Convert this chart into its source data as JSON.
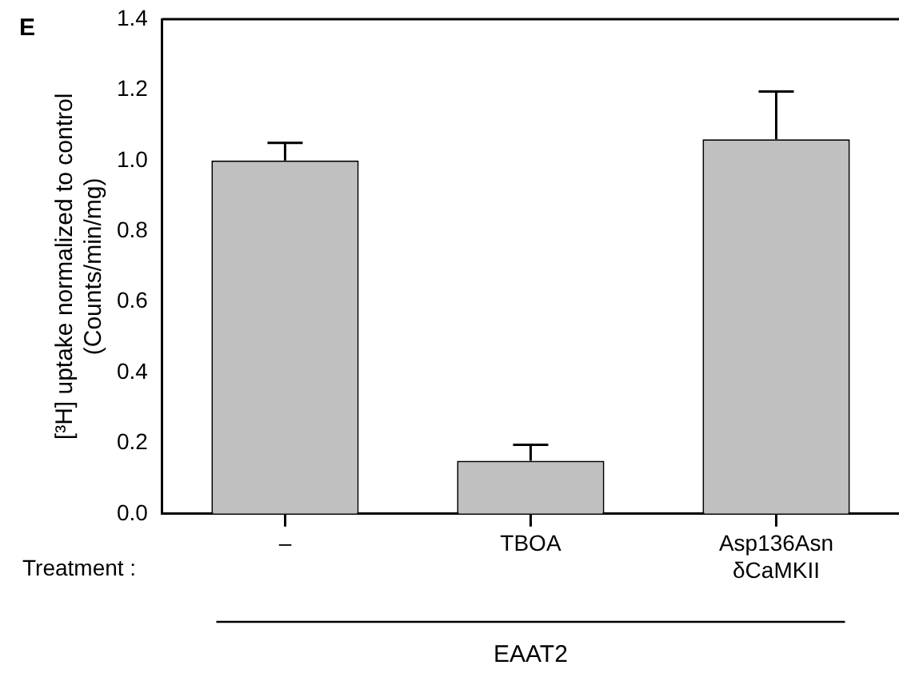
{
  "chart_data": {
    "type": "bar",
    "ylabel": "[³H] uptake normalized to control\n(Counts/min/mg)",
    "categories": [
      "–",
      "TBOA",
      "Asp136Asn\nδCaMKII"
    ],
    "values": [
      1.0,
      0.15,
      1.06
    ],
    "errors": [
      0.05,
      0.045,
      0.135
    ],
    "color": "#c0c0c0",
    "ylim": [
      0,
      1.4
    ],
    "yticks": [
      {
        "value": 0,
        "label": "0.0"
      },
      0.2,
      0.4,
      0.6,
      0.8,
      {
        "value": 1,
        "label": "1.0"
      },
      1.2,
      1.4
    ],
    "grid": false,
    "annotations": [
      "E",
      "Treatment :",
      "EAAT2"
    ]
  }
}
